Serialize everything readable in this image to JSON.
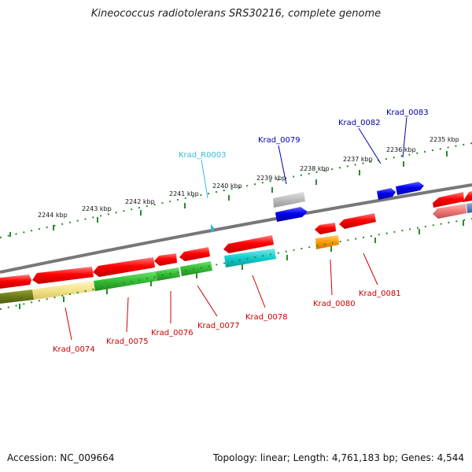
{
  "title": "Kineococcus radiotolerans SRS30216, complete genome",
  "footer": {
    "accession": "Accession: NC_009664",
    "topology": "Topology: linear; Length: 4,761,183 bp; Genes: 4,544"
  },
  "colors": {
    "backbone": "#777777",
    "tick": "#2a8a2a",
    "red": "#ff0000",
    "blue": "#0000ee",
    "cyan_label": "#33bbdd",
    "red_label": "#cc0000",
    "blue_label": "#0000aa"
  },
  "kbp_labels": [
    "2244 kbp",
    "2243 kbp",
    "2242 kbp",
    "2241 kbp",
    "2240 kbp",
    "2239 kbp",
    "2238 kbp",
    "2237 kbp",
    "2236 kbp",
    "2235 kbp"
  ],
  "gene_labels": [
    {
      "id": "krad-0074",
      "text": "Krad_0074",
      "color": "red"
    },
    {
      "id": "krad-0075",
      "text": "Krad_0075",
      "color": "red"
    },
    {
      "id": "krad-0076",
      "text": "Krad_0076",
      "color": "red"
    },
    {
      "id": "krad-0077",
      "text": "Krad_0077",
      "color": "red"
    },
    {
      "id": "krad-0078",
      "text": "Krad_0078",
      "color": "red"
    },
    {
      "id": "krad-0080",
      "text": "Krad_0080",
      "color": "red"
    },
    {
      "id": "krad-0081",
      "text": "Krad_0081",
      "color": "red"
    },
    {
      "id": "krad-r0003",
      "text": "Krad_R0003",
      "color": "cyan"
    },
    {
      "id": "krad-0079",
      "text": "Krad_0079",
      "color": "blue"
    },
    {
      "id": "krad-0082",
      "text": "Krad_0082",
      "color": "blue"
    },
    {
      "id": "krad-0083",
      "text": "Krad_0083",
      "color": "blue"
    }
  ]
}
